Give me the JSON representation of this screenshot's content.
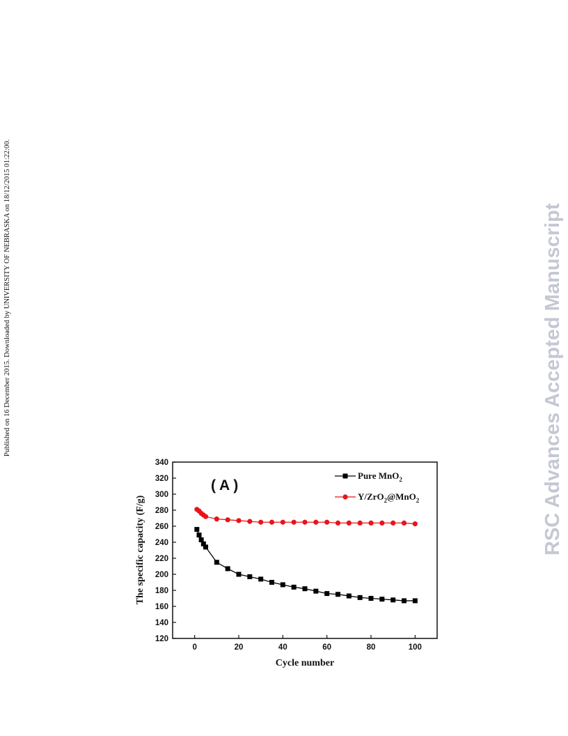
{
  "page": {
    "side_note": "Published on 16 December 2015. Downloaded by UNIVERSITY OF NEBRASKA on 18/12/2015 01:22:00.",
    "watermark": "RSC Advances Accepted Manuscript"
  },
  "chart_data": {
    "type": "line",
    "panel_label": "( A )",
    "xlabel": "Cycle number",
    "ylabel": "The specific capacity (F/g)",
    "xlim": [
      -10,
      110
    ],
    "ylim": [
      120,
      340
    ],
    "xticks": [
      0,
      20,
      40,
      60,
      80,
      100
    ],
    "yticks": [
      120,
      140,
      160,
      180,
      200,
      220,
      240,
      260,
      280,
      300,
      320,
      340
    ],
    "grid": false,
    "legend_position": "top-right",
    "series": [
      {
        "name": "Pure MnO2",
        "legend_main": "Pure MnO",
        "legend_sub": "2",
        "color": "#000000",
        "marker": "square",
        "x": [
          1,
          2,
          3,
          4,
          5,
          10,
          15,
          20,
          25,
          30,
          35,
          40,
          45,
          50,
          55,
          60,
          65,
          70,
          75,
          80,
          85,
          90,
          95,
          100
        ],
        "y": [
          256,
          249,
          243,
          238,
          234,
          215,
          207,
          200,
          197,
          194,
          190,
          187,
          184,
          182,
          179,
          176,
          175,
          173,
          171,
          170,
          169,
          168,
          167,
          167
        ]
      },
      {
        "name": "Y/ZrO2@MnO2",
        "legend_parts": [
          "Y/ZrO",
          "2",
          "@MnO",
          "2"
        ],
        "color": "#e8141b",
        "marker": "circle",
        "x": [
          1,
          2,
          3,
          4,
          5,
          10,
          15,
          20,
          25,
          30,
          35,
          40,
          45,
          50,
          55,
          60,
          65,
          70,
          75,
          80,
          85,
          90,
          95,
          100
        ],
        "y": [
          281,
          279,
          276,
          274,
          272,
          269,
          268,
          267,
          266,
          265,
          265,
          265,
          265,
          265,
          265,
          265,
          264,
          264,
          264,
          264,
          264,
          264,
          264,
          263
        ]
      }
    ]
  }
}
